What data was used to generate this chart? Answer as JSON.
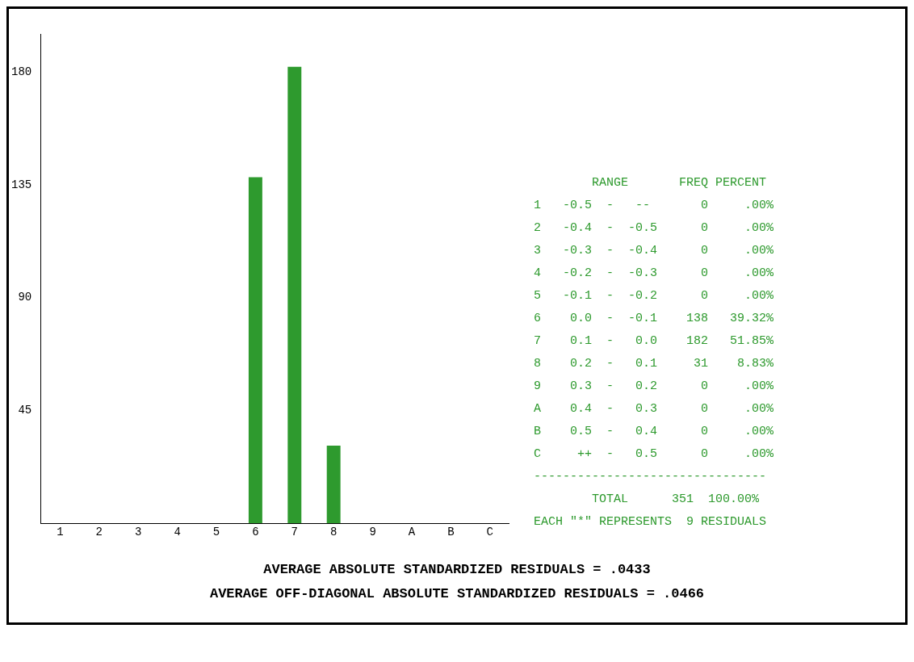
{
  "chart_data": {
    "type": "bar",
    "categories": [
      "1",
      "2",
      "3",
      "4",
      "5",
      "6",
      "7",
      "8",
      "9",
      "A",
      "B",
      "C"
    ],
    "values": [
      0,
      0,
      0,
      0,
      0,
      138,
      182,
      31,
      0,
      0,
      0,
      0
    ],
    "color": "#2e9a2e",
    "ylim": [
      0,
      195
    ],
    "yticks": [
      45,
      90,
      135,
      180
    ],
    "grid": false,
    "annotations": [
      "        RANGE       FREQ PERCENT",
      "1   -0.5  -   --       0     .00%",
      "2   -0.4  -  -0.5      0     .00%",
      "3   -0.3  -  -0.4      0     .00%",
      "4   -0.2  -  -0.3      0     .00%",
      "5   -0.1  -  -0.2      0     .00%",
      "6    0.0  -  -0.1    138   39.32%",
      "7    0.1  -   0.0    182   51.85%",
      "8    0.2  -   0.1     31    8.83%",
      "9    0.3  -   0.2      0     .00%",
      "A    0.4  -   0.3      0     .00%",
      "B    0.5  -   0.4      0     .00%",
      "C     ++  -   0.5      0     .00%",
      "--------------------------------",
      "        TOTAL      351  100.00%",
      "EACH \"*\" REPRESENTS  9 RESIDUALS",
      "AVERAGE ABSOLUTE STANDARDIZED RESIDUALS = .0433",
      "AVERAGE OFF-DIAGONAL ABSOLUTE STANDARDIZED RESIDUALS = .0466"
    ]
  }
}
